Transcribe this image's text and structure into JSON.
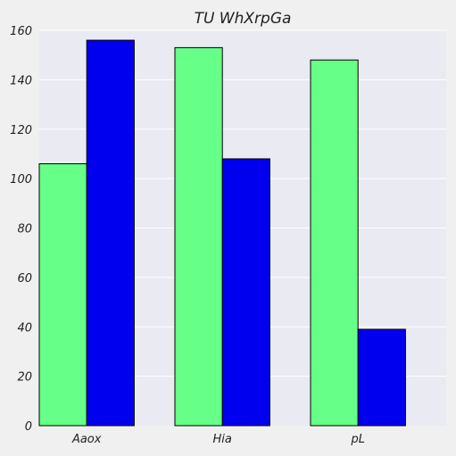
{
  "chart_data": {
    "type": "bar",
    "title": "TU WhXrpGa",
    "xlabel": "",
    "ylabel": "",
    "categories": [
      "Aaox",
      "Hia",
      "pL"
    ],
    "series": [
      {
        "values": [
          106,
          153,
          148
        ],
        "color": "#66ff88"
      },
      {
        "values": [
          156,
          108,
          39
        ],
        "color": "#0000ee"
      }
    ],
    "ylim": [
      0,
      160
    ],
    "yticks": [
      0,
      20,
      40,
      60,
      80,
      100,
      120,
      140,
      160
    ],
    "grid": true,
    "legend": "none",
    "plot_background": "#eaeaf2"
  }
}
